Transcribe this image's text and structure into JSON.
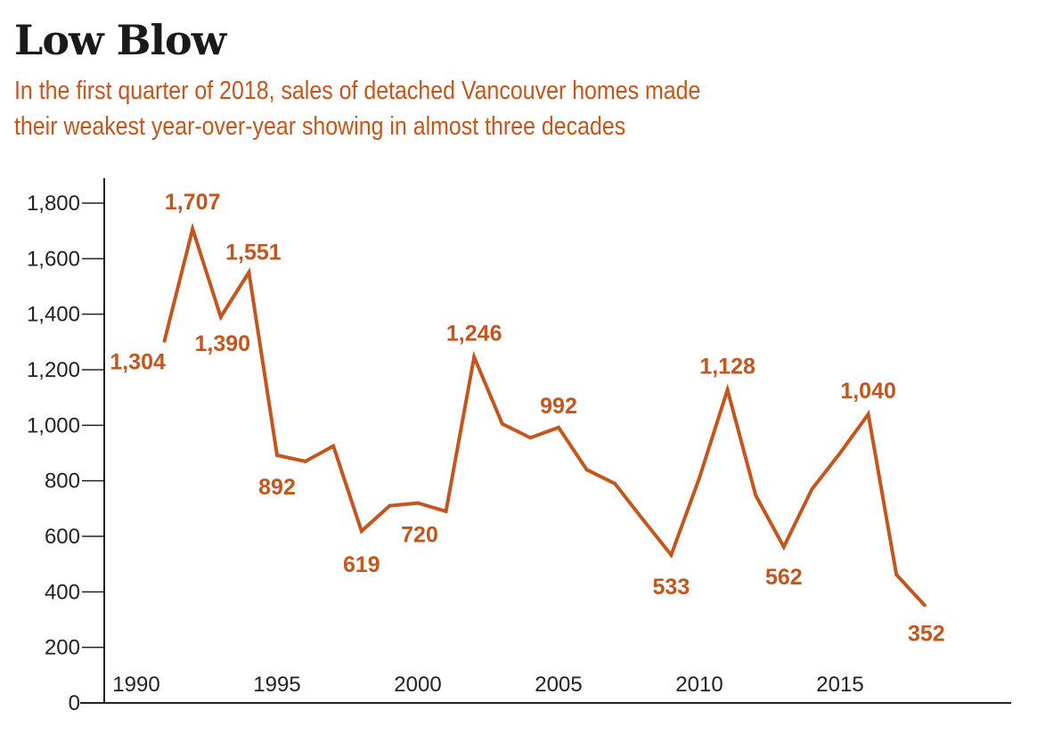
{
  "title": "Low Blow",
  "subtitle_line1": "In the first quarter of 2018, sales of detached Vancouver homes made",
  "subtitle_line2": "their weakest year-over-year showing in almost three decades",
  "chart_data": {
    "type": "line",
    "title": "Low Blow",
    "xlabel": "",
    "ylabel": "",
    "color": "#c4551c",
    "ylim": [
      0,
      1800
    ],
    "yticks": [
      0,
      200,
      400,
      600,
      800,
      1000,
      1200,
      1400,
      1600,
      1800
    ],
    "ytick_labels": [
      "0",
      "200",
      "400",
      "600",
      "800",
      "1,000",
      "1,200",
      "1,400",
      "1,600",
      "1,800"
    ],
    "xticks": [
      1990,
      1995,
      2000,
      2005,
      2010,
      2015
    ],
    "xtick_labels": [
      "1990",
      "1995",
      "2000",
      "2005",
      "2010",
      "2015"
    ],
    "xlim": [
      1989,
      2021
    ],
    "grid": false,
    "x": [
      1991,
      1992,
      1993,
      1994,
      1995,
      1996,
      1997,
      1998,
      1999,
      2000,
      2001,
      2002,
      2003,
      2004,
      2005,
      2006,
      2007,
      2008,
      2009,
      2010,
      2011,
      2012,
      2013,
      2014,
      2015,
      2016,
      2017,
      2018
    ],
    "y": [
      1304,
      1707,
      1390,
      1551,
      892,
      870,
      925,
      619,
      710,
      720,
      690,
      1246,
      1005,
      955,
      992,
      840,
      790,
      660,
      533,
      810,
      1128,
      748,
      562,
      770,
      900,
      1040,
      462,
      352
    ],
    "labels": [
      {
        "x": 1991,
        "text": "1,304"
      },
      {
        "x": 1992,
        "text": "1,707"
      },
      {
        "x": 1993,
        "text": "1,390"
      },
      {
        "x": 1994,
        "text": "1,551"
      },
      {
        "x": 1995,
        "text": "892"
      },
      {
        "x": 1998,
        "text": "619"
      },
      {
        "x": 2000,
        "text": "720"
      },
      {
        "x": 2002,
        "text": "1,246"
      },
      {
        "x": 2005,
        "text": "992"
      },
      {
        "x": 2009,
        "text": "533"
      },
      {
        "x": 2011,
        "text": "1,128"
      },
      {
        "x": 2013,
        "text": "562"
      },
      {
        "x": 2016,
        "text": "1,040"
      },
      {
        "x": 2018,
        "text": "352"
      }
    ]
  }
}
